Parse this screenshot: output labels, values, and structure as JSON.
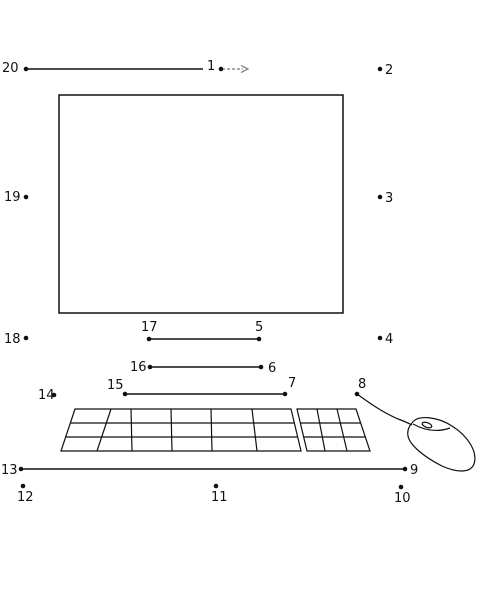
{
  "puzzle": {
    "dots": [
      {
        "label": "1"
      },
      {
        "label": "2"
      },
      {
        "label": "3"
      },
      {
        "label": "4"
      },
      {
        "label": "5"
      },
      {
        "label": "6"
      },
      {
        "label": "7"
      },
      {
        "label": "8"
      },
      {
        "label": "9"
      },
      {
        "label": "10"
      },
      {
        "label": "11"
      },
      {
        "label": "12"
      },
      {
        "label": "13"
      },
      {
        "label": "14"
      },
      {
        "label": "15"
      },
      {
        "label": "16"
      },
      {
        "label": "17"
      },
      {
        "label": "18"
      },
      {
        "label": "19"
      },
      {
        "label": "20"
      }
    ],
    "start_arrow_icon": "dashed-arrow-right-icon",
    "line_color": "#111111",
    "background": "#ffffff"
  }
}
